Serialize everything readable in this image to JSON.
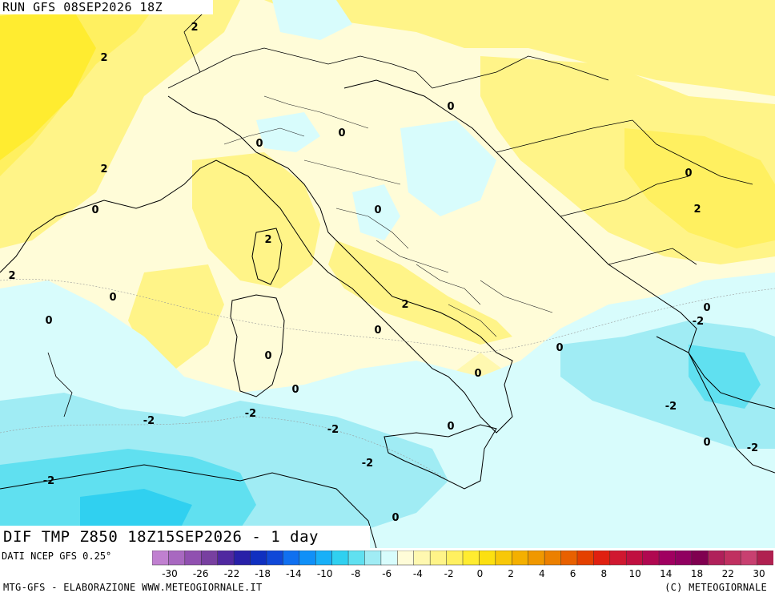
{
  "header": {
    "run_title": "RUN GFS 08SEP2026 18Z",
    "field_title": "DIF TMP Z850 18Z15SEP2026 - 1 day"
  },
  "footer": {
    "source": "DATI NCEP GFS 0.25°",
    "credit_left": "MTG-GFS - ELABORAZIONE WWW.METEOGIORNALE.IT",
    "credit_right": "(C) METEOGIORNALE"
  },
  "colorbar": {
    "tick_labels": [
      "-30",
      "-26",
      "-22",
      "-18",
      "-14",
      "-10",
      "-8",
      "-6",
      "-4",
      "-2",
      "0",
      "2",
      "4",
      "6",
      "8",
      "10",
      "14",
      "18",
      "22",
      "30"
    ],
    "colors": [
      "#c080d0",
      "#a868c0",
      "#9050b0",
      "#7840a0",
      "#5028a0",
      "#2820a8",
      "#1030c0",
      "#1048d8",
      "#1070f0",
      "#1090f8",
      "#18b0f8",
      "#30d0f0",
      "#60e0f0",
      "#a0ecf4",
      "#d8fcfc",
      "#fffcd8",
      "#fff8b0",
      "#fff488",
      "#fff060",
      "#ffec30",
      "#fce010",
      "#f8c808",
      "#f4b000",
      "#f09800",
      "#ec8000",
      "#e86000",
      "#e44000",
      "#e02010",
      "#d01830",
      "#c01040",
      "#b00850",
      "#a00060",
      "#900060",
      "#800050",
      "#b0205a",
      "#c03060",
      "#c84070",
      "#b02050"
    ],
    "unit_note": ""
  },
  "contour_labels": [
    {
      "text": "2"
    },
    {
      "text": "2"
    },
    {
      "text": "2"
    },
    {
      "text": "0"
    },
    {
      "text": "0"
    },
    {
      "text": "0"
    },
    {
      "text": "0"
    },
    {
      "text": "0"
    },
    {
      "text": "2"
    },
    {
      "text": "2"
    },
    {
      "text": "0"
    },
    {
      "text": "2"
    },
    {
      "text": "0"
    },
    {
      "text": "0"
    },
    {
      "text": "0"
    },
    {
      "text": "0"
    },
    {
      "text": "2"
    },
    {
      "text": "0"
    },
    {
      "text": "0"
    },
    {
      "text": "-2"
    },
    {
      "text": "0"
    },
    {
      "text": "0"
    },
    {
      "text": "-2"
    },
    {
      "text": "-2"
    },
    {
      "text": "-2"
    },
    {
      "text": "0"
    },
    {
      "text": "-2"
    },
    {
      "text": "-2"
    },
    {
      "text": "0"
    },
    {
      "text": "-2"
    },
    {
      "text": "0"
    },
    {
      "text": "-2"
    }
  ],
  "colors": {
    "pale_cyan": "#d8fcfc",
    "light_cyan": "#a0ecf4",
    "mid_cyan": "#60e0f0",
    "cyan": "#30d0f0",
    "pale_yellow": "#fffcd8",
    "light_yellow": "#fff8b0",
    "yellow": "#fff488",
    "strong_yellow": "#fff060"
  }
}
